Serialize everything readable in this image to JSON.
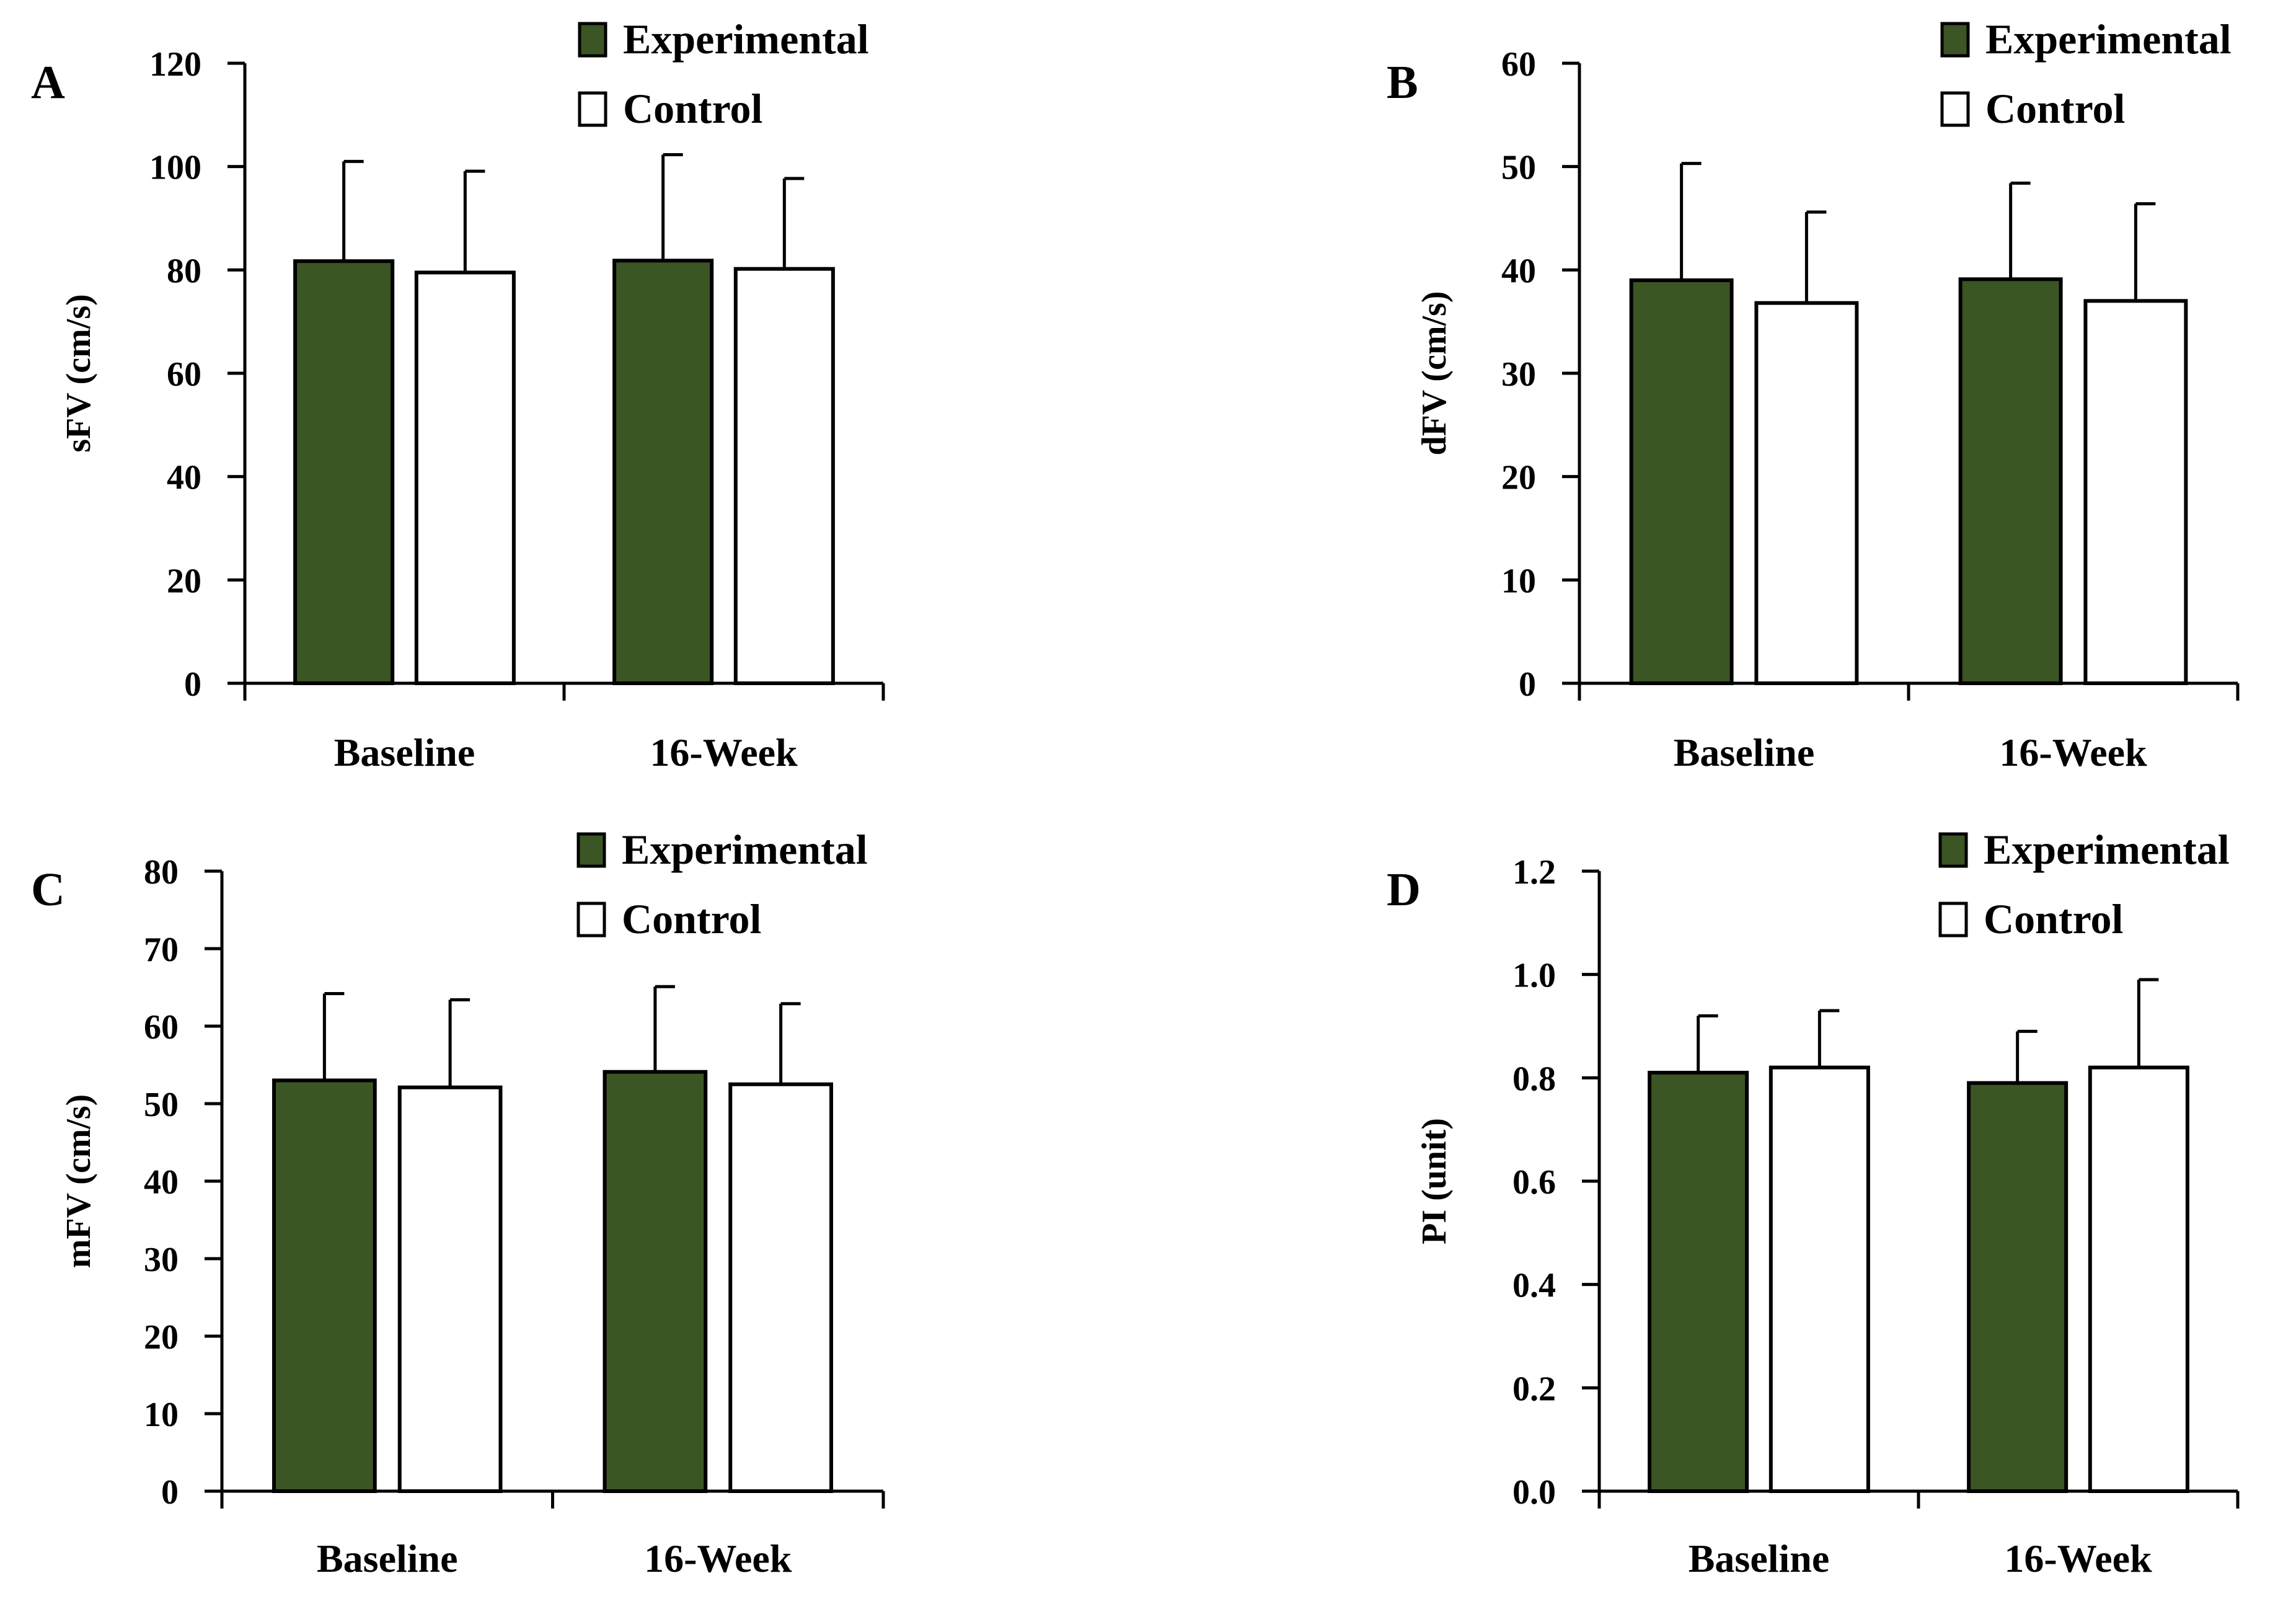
{
  "colors": {
    "experimental": "#3b5524",
    "control": "#ffffff",
    "stroke": "#000000"
  },
  "chart_data": [
    {
      "panel": "A",
      "type": "bar",
      "categories": [
        "Baseline",
        "16-Week"
      ],
      "ylabel": "sFV (cm/s)",
      "ylim": [
        0,
        120
      ],
      "yticks": [
        0,
        20,
        40,
        60,
        80,
        100,
        120
      ],
      "ytick_labels": [
        "0",
        "20",
        "40",
        "60",
        "80",
        "100",
        "120"
      ],
      "legend": {
        "position": "top-right",
        "entries": [
          "Experimental",
          "Control"
        ]
      },
      "series": [
        {
          "name": "Experimental",
          "values": [
            81.7,
            81.8
          ],
          "errors": [
            19.3,
            20.5
          ]
        },
        {
          "name": "Control",
          "values": [
            79.5,
            80.2
          ],
          "errors": [
            19.6,
            17.5
          ]
        }
      ]
    },
    {
      "panel": "B",
      "type": "bar",
      "categories": [
        "Baseline",
        "16-Week"
      ],
      "ylabel": "dFV (cm/s)",
      "ylim": [
        0,
        60
      ],
      "yticks": [
        0,
        10,
        20,
        30,
        40,
        50,
        60
      ],
      "ytick_labels": [
        "0",
        "10",
        "20",
        "30",
        "40",
        "50",
        "60"
      ],
      "legend": {
        "position": "top-right",
        "entries": [
          "Experimental",
          "Control"
        ]
      },
      "series": [
        {
          "name": "Experimental",
          "values": [
            39.0,
            39.1
          ],
          "errors": [
            11.3,
            9.3
          ]
        },
        {
          "name": "Control",
          "values": [
            36.8,
            37.0
          ],
          "errors": [
            8.8,
            9.4
          ]
        }
      ]
    },
    {
      "panel": "C",
      "type": "bar",
      "categories": [
        "Baseline",
        "16-Week"
      ],
      "ylabel": "mFV (cm/s)",
      "ylim": [
        0,
        80
      ],
      "yticks": [
        0,
        10,
        20,
        30,
        40,
        50,
        60,
        70,
        80
      ],
      "ytick_labels": [
        "0",
        "10",
        "20",
        "30",
        "40",
        "50",
        "60",
        "70",
        "80"
      ],
      "legend": {
        "position": "top-right",
        "entries": [
          "Experimental",
          "Control"
        ]
      },
      "series": [
        {
          "name": "Experimental",
          "values": [
            53.0,
            54.1
          ],
          "errors": [
            11.2,
            11.0
          ]
        },
        {
          "name": "Control",
          "values": [
            52.1,
            52.5
          ],
          "errors": [
            11.3,
            10.4
          ]
        }
      ]
    },
    {
      "panel": "D",
      "type": "bar",
      "categories": [
        "Baseline",
        "16-Week"
      ],
      "ylabel": "PI (unit)",
      "ylim": [
        0,
        1.2
      ],
      "yticks": [
        0,
        0.2,
        0.4,
        0.6,
        0.8,
        1.0,
        1.2
      ],
      "ytick_labels": [
        "0.0",
        "0.2",
        "0.4",
        "0.6",
        "0.8",
        "1.0",
        "1.2"
      ],
      "legend": {
        "position": "top-right",
        "entries": [
          "Experimental",
          "Control"
        ]
      },
      "series": [
        {
          "name": "Experimental",
          "values": [
            0.81,
            0.79
          ],
          "errors": [
            0.11,
            0.1
          ]
        },
        {
          "name": "Control",
          "values": [
            0.82,
            0.82
          ],
          "errors": [
            0.11,
            0.17
          ]
        }
      ]
    }
  ]
}
